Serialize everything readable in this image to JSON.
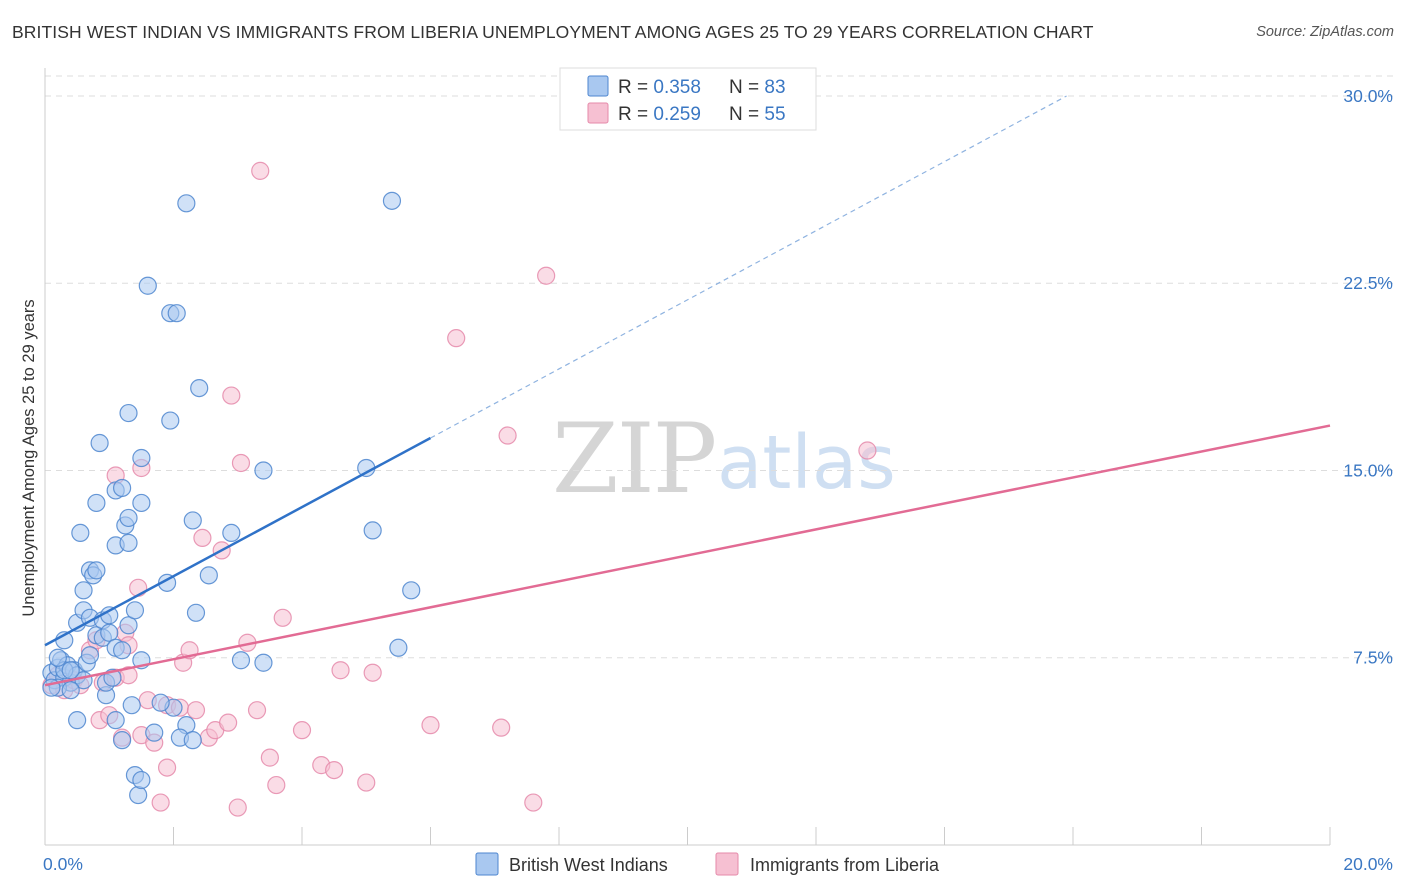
{
  "title": "BRITISH WEST INDIAN VS IMMIGRANTS FROM LIBERIA UNEMPLOYMENT AMONG AGES 25 TO 29 YEARS CORRELATION CHART",
  "source": "Source: ZipAtlas.com",
  "watermark": {
    "zip": "ZIP",
    "atlas": "atlas"
  },
  "colors": {
    "blue_fill": "#a9c8f0",
    "blue_stroke": "#4e86cf",
    "blue_line": "#2f72c8",
    "pink_fill": "#f6c0d2",
    "pink_stroke": "#e58aaa",
    "pink_line": "#e26b94",
    "grid": "#dddddd",
    "tick_text": "#3a77c3"
  },
  "legend": {
    "rows": [
      {
        "r_label": "R = ",
        "r_value": "0.358",
        "n_label": "N = ",
        "n_value": "83"
      },
      {
        "r_label": "R = ",
        "r_value": "0.259",
        "n_label": "N = ",
        "n_value": "55"
      }
    ]
  },
  "chart_data": {
    "type": "scatter",
    "title": "BRITISH WEST INDIAN VS IMMIGRANTS FROM LIBERIA UNEMPLOYMENT AMONG AGES 25 TO 29 YEARS CORRELATION CHART",
    "xlabel": "",
    "ylabel": "Unemployment Among Ages 25 to 29 years",
    "xlim": [
      0,
      20
    ],
    "ylim": [
      0,
      30.8
    ],
    "x_tick_labels": [
      "0.0%",
      "20.0%"
    ],
    "y_ticks": [
      7.5,
      15.0,
      22.5,
      30.0
    ],
    "y_tick_labels": [
      "7.5%",
      "15.0%",
      "22.5%",
      "30.0%"
    ],
    "grid": true,
    "legend_position": "top-center",
    "series": [
      {
        "name": "British West Indians",
        "r": 0.358,
        "n": 83,
        "trend": {
          "x0": 0.0,
          "y0": 8.0,
          "x1": 6.0,
          "y1": 16.3,
          "dashed_to_x": 15.9,
          "dashed_to_y": 30.0
        },
        "points": [
          [
            0.1,
            6.9
          ],
          [
            0.15,
            6.6
          ],
          [
            0.2,
            7.1
          ],
          [
            0.25,
            7.4
          ],
          [
            0.3,
            6.7
          ],
          [
            0.35,
            7.2
          ],
          [
            0.4,
            6.5
          ],
          [
            0.45,
            7.0
          ],
          [
            0.5,
            6.8
          ],
          [
            0.2,
            6.3
          ],
          [
            0.3,
            8.2
          ],
          [
            0.5,
            8.9
          ],
          [
            0.6,
            9.4
          ],
          [
            0.7,
            9.1
          ],
          [
            0.8,
            8.4
          ],
          [
            0.9,
            9.0
          ],
          [
            1.0,
            9.2
          ],
          [
            0.6,
            10.2
          ],
          [
            0.7,
            11.0
          ],
          [
            0.75,
            10.8
          ],
          [
            0.8,
            11.0
          ],
          [
            0.9,
            8.3
          ],
          [
            1.0,
            8.5
          ],
          [
            1.1,
            7.9
          ],
          [
            1.2,
            7.8
          ],
          [
            1.3,
            8.8
          ],
          [
            1.4,
            9.4
          ],
          [
            1.5,
            7.4
          ],
          [
            0.55,
            12.5
          ],
          [
            0.8,
            13.7
          ],
          [
            0.85,
            16.1
          ],
          [
            1.1,
            12.0
          ],
          [
            1.1,
            14.2
          ],
          [
            1.2,
            14.3
          ],
          [
            1.25,
            12.8
          ],
          [
            1.3,
            13.1
          ],
          [
            1.3,
            12.1
          ],
          [
            1.5,
            13.7
          ],
          [
            1.5,
            15.5
          ],
          [
            1.3,
            17.3
          ],
          [
            1.6,
            22.4
          ],
          [
            1.95,
            21.3
          ],
          [
            2.05,
            21.3
          ],
          [
            2.2,
            25.7
          ],
          [
            1.95,
            17.0
          ],
          [
            2.4,
            18.3
          ],
          [
            1.9,
            10.5
          ],
          [
            2.35,
            9.3
          ],
          [
            2.55,
            10.8
          ],
          [
            2.3,
            13.0
          ],
          [
            2.9,
            12.5
          ],
          [
            3.4,
            15.0
          ],
          [
            3.05,
            7.4
          ],
          [
            3.4,
            7.3
          ],
          [
            2.2,
            4.8
          ],
          [
            2.0,
            5.5
          ],
          [
            2.1,
            4.3
          ],
          [
            2.3,
            4.2
          ],
          [
            1.7,
            4.5
          ],
          [
            1.8,
            5.7
          ],
          [
            1.1,
            5.0
          ],
          [
            1.2,
            4.2
          ],
          [
            1.35,
            5.6
          ],
          [
            1.4,
            2.8
          ],
          [
            1.45,
            2.0
          ],
          [
            1.5,
            2.6
          ],
          [
            0.95,
            6.0
          ],
          [
            0.5,
            5.0
          ],
          [
            0.6,
            6.6
          ],
          [
            0.65,
            7.3
          ],
          [
            0.95,
            6.5
          ],
          [
            1.05,
            6.7
          ],
          [
            0.4,
            6.2
          ],
          [
            0.3,
            7.0
          ],
          [
            5.0,
            15.1
          ],
          [
            5.1,
            12.6
          ],
          [
            5.5,
            7.9
          ],
          [
            5.7,
            10.2
          ],
          [
            5.4,
            25.8
          ],
          [
            0.2,
            7.5
          ],
          [
            0.4,
            7.0
          ],
          [
            0.1,
            6.3
          ],
          [
            0.7,
            7.6
          ]
        ]
      },
      {
        "name": "Immigrants from Liberia",
        "r": 0.259,
        "n": 55,
        "trend": {
          "x0": 0.0,
          "y0": 6.4,
          "x1": 20.0,
          "y1": 16.8
        },
        "points": [
          [
            0.1,
            6.4
          ],
          [
            0.2,
            6.8
          ],
          [
            0.3,
            6.2
          ],
          [
            0.45,
            6.6
          ],
          [
            0.55,
            6.4
          ],
          [
            0.7,
            7.8
          ],
          [
            0.8,
            8.2
          ],
          [
            0.85,
            5.0
          ],
          [
            1.0,
            5.2
          ],
          [
            0.9,
            6.5
          ],
          [
            1.1,
            6.7
          ],
          [
            1.2,
            4.3
          ],
          [
            1.25,
            8.5
          ],
          [
            1.3,
            8.0
          ],
          [
            1.45,
            10.3
          ],
          [
            1.5,
            4.4
          ],
          [
            1.6,
            5.8
          ],
          [
            1.7,
            4.1
          ],
          [
            1.8,
            1.7
          ],
          [
            1.9,
            3.1
          ],
          [
            1.9,
            5.6
          ],
          [
            2.1,
            5.5
          ],
          [
            2.15,
            7.3
          ],
          [
            2.25,
            7.8
          ],
          [
            2.35,
            5.4
          ],
          [
            2.45,
            12.3
          ],
          [
            2.55,
            4.3
          ],
          [
            2.65,
            4.6
          ],
          [
            2.75,
            11.8
          ],
          [
            2.85,
            4.9
          ],
          [
            3.0,
            1.5
          ],
          [
            3.05,
            15.3
          ],
          [
            3.15,
            8.1
          ],
          [
            3.3,
            5.4
          ],
          [
            3.5,
            3.5
          ],
          [
            3.6,
            2.4
          ],
          [
            3.7,
            9.1
          ],
          [
            4.0,
            4.6
          ],
          [
            4.3,
            3.2
          ],
          [
            4.5,
            3.0
          ],
          [
            4.6,
            7.0
          ],
          [
            5.0,
            2.5
          ],
          [
            5.1,
            6.9
          ],
          [
            6.0,
            4.8
          ],
          [
            6.4,
            20.3
          ],
          [
            7.1,
            4.7
          ],
          [
            7.2,
            16.4
          ],
          [
            7.6,
            1.7
          ],
          [
            7.8,
            22.8
          ],
          [
            12.8,
            15.8
          ],
          [
            3.35,
            27.0
          ],
          [
            2.9,
            18.0
          ],
          [
            1.5,
            15.1
          ],
          [
            1.1,
            14.8
          ],
          [
            1.3,
            6.8
          ]
        ]
      }
    ]
  },
  "bottom_legend": {
    "items": [
      {
        "label": "British West Indians"
      },
      {
        "label": "Immigrants from Liberia"
      }
    ]
  }
}
